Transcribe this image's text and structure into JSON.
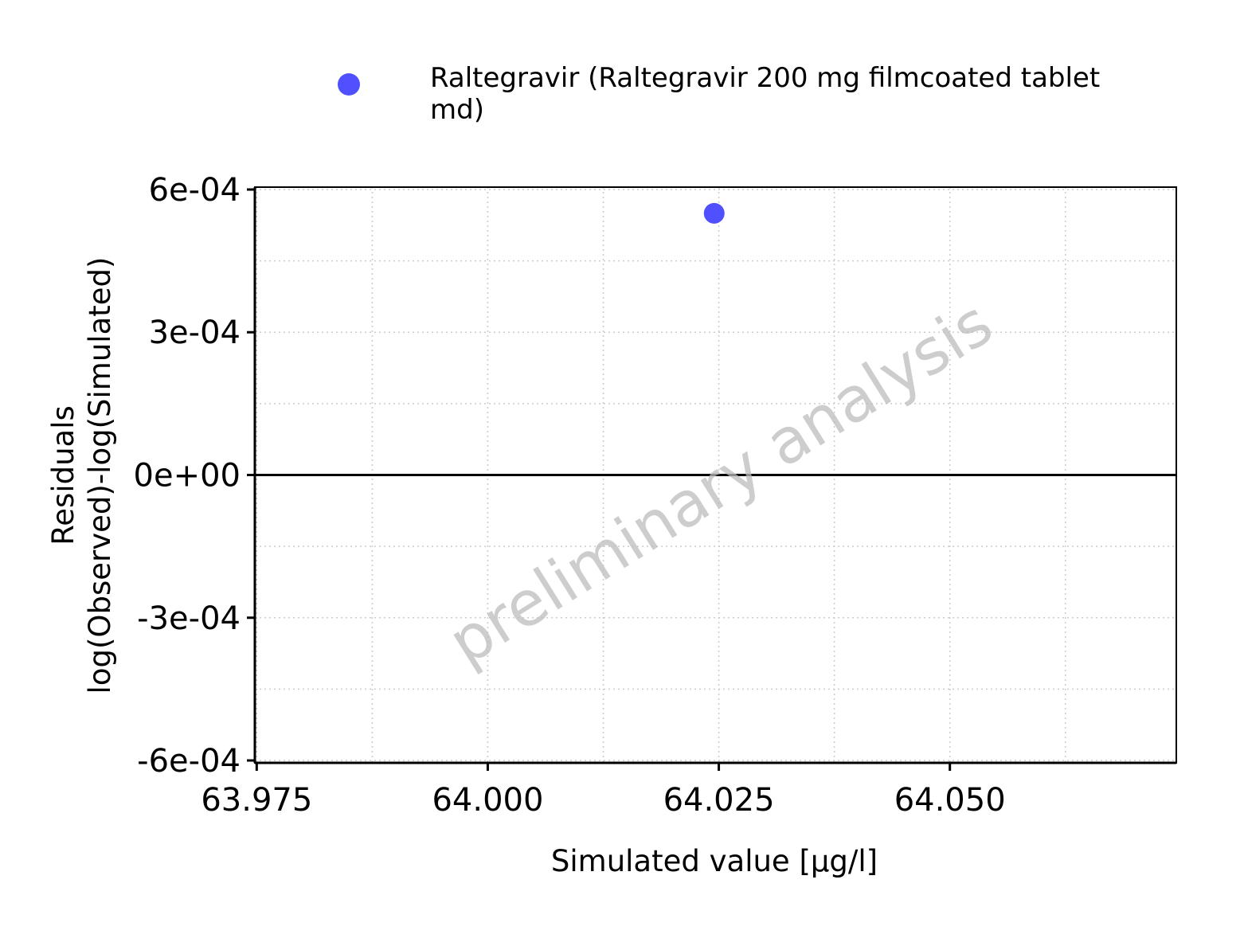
{
  "chart_data": {
    "type": "scatter",
    "series": [
      {
        "name": "Raltegravir (Raltegravir 200 mg filmcoated tablet md)",
        "color": "#5050ff",
        "points": [
          {
            "x": 64.0245,
            "y": 0.00055
          }
        ]
      }
    ],
    "xlabel": "Simulated value [µg/l]",
    "ylabel_line1": "Residuals",
    "ylabel_line2": "log(Observed)-log(Simulated)",
    "xlim": [
      63.9748,
      64.0745
    ],
    "ylim": [
      -0.000605,
      0.000605
    ],
    "x_ticks": [
      63.975,
      64.0,
      64.025,
      64.05
    ],
    "x_tick_labels": [
      "63.975",
      "64.000",
      "64.025",
      "64.050"
    ],
    "y_ticks": [
      0.0006,
      0.0003,
      0.0,
      -0.0003,
      -0.0006
    ],
    "y_tick_labels": [
      "6e-04",
      "3e-04",
      "0e+00",
      "-3e-04",
      "-6e-04"
    ],
    "reference_line_y": 0,
    "grid": true,
    "legend_position": "top"
  },
  "legend": {
    "label": "Raltegravir (Raltegravir 200 mg filmcoated tablet md)"
  },
  "watermark": "preliminary analysis"
}
